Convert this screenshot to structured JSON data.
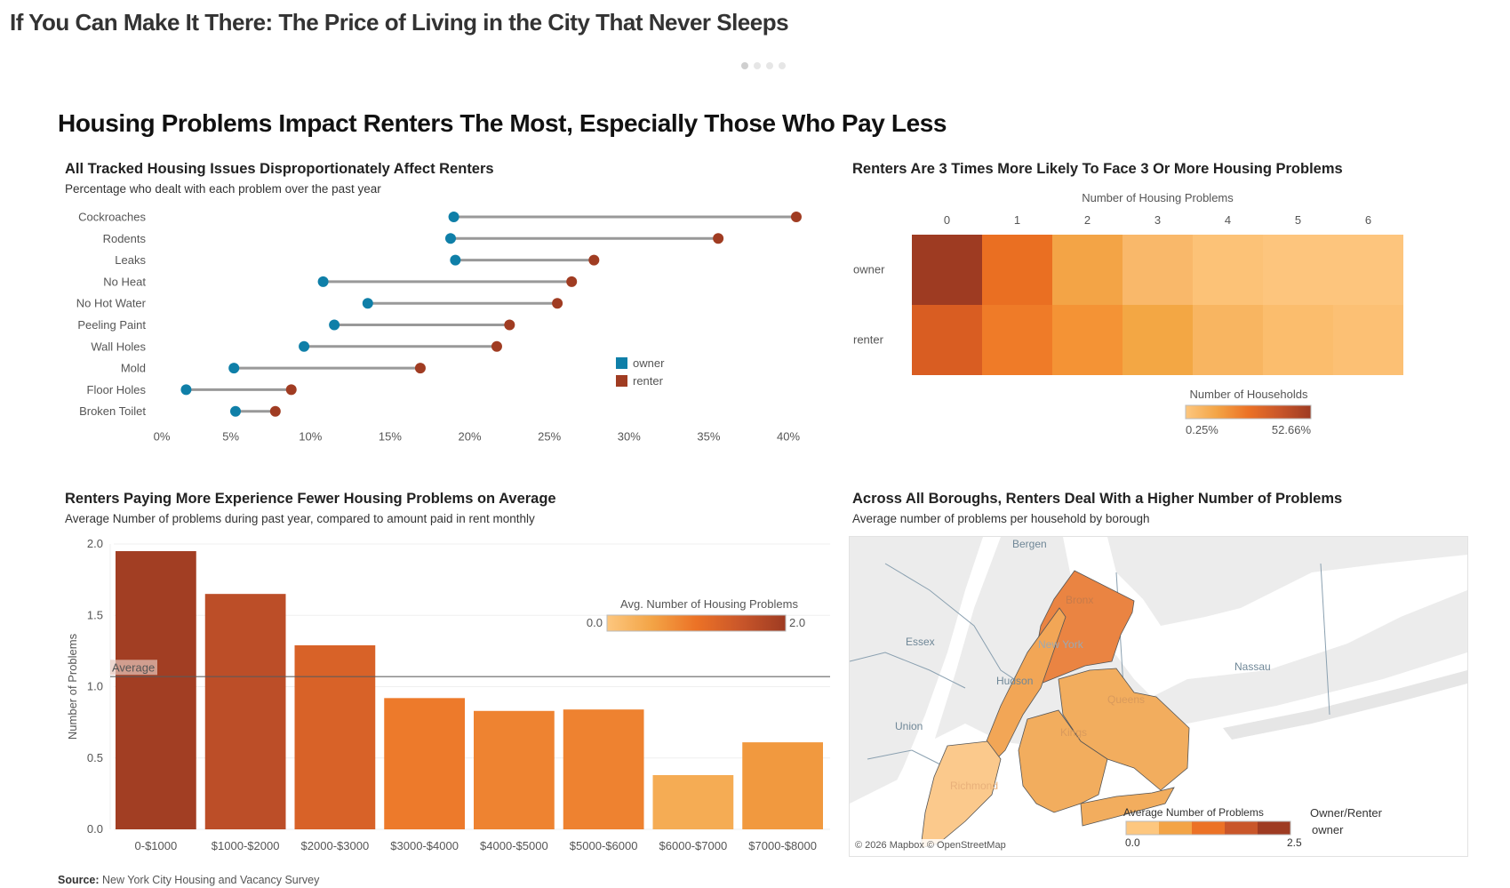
{
  "page": {
    "top_title": "If You Can Make It There: The Price of Living in the City That Never Sleeps",
    "pager": {
      "count": 4,
      "active_index": 0
    },
    "main_heading": "Housing Problems Impact Renters The Most, Especially Those Who Pay Less",
    "source_label": "Source:",
    "source_text": "New York City Housing and Vacancy Survey"
  },
  "colors": {
    "owner": "#0f7fa8",
    "renter": "#a03c22",
    "connector": "#999999",
    "seq_scale": [
      "#fdc77f",
      "#f3a446",
      "#ec7226",
      "#c9562a",
      "#9e3b22"
    ]
  },
  "chart_data": [
    {
      "id": "dumbbell",
      "type": "scatter",
      "title": "All Tracked Housing Issues Disproportionately Affect Renters",
      "subtitle": "Percentage who dealt with each problem over the past year",
      "categories": [
        "Cockroaches",
        "Rodents",
        "Leaks",
        "No Heat",
        "No Hot Water",
        "Peeling Paint",
        "Wall Holes",
        "Mold",
        "Floor Holes",
        "Broken Toilet"
      ],
      "series": [
        {
          "name": "owner",
          "values": [
            19.0,
            18.8,
            19.1,
            10.8,
            13.6,
            11.5,
            9.6,
            5.2,
            2.2,
            5.3
          ]
        },
        {
          "name": "renter",
          "values": [
            40.5,
            35.6,
            27.8,
            26.4,
            25.5,
            22.5,
            21.7,
            16.9,
            8.8,
            7.8
          ]
        }
      ],
      "xlim": [
        0,
        40
      ],
      "xticks": [
        "0%",
        "5%",
        "10%",
        "15%",
        "20%",
        "25%",
        "30%",
        "35%",
        "40%"
      ],
      "xtick_values": [
        0,
        5,
        10,
        15,
        20,
        25,
        30,
        35,
        40
      ],
      "legend": [
        "owner",
        "renter"
      ],
      "legend_position": "right"
    },
    {
      "id": "heatmap",
      "type": "heatmap",
      "title": "Renters Are 3 Times More Likely To Face 3 Or More Housing Problems",
      "xlabel": "Number of Housing Problems",
      "x": [
        "0",
        "1",
        "2",
        "3",
        "4",
        "5",
        "6"
      ],
      "y": [
        "owner",
        "renter"
      ],
      "colors": [
        [
          "#9e3b22",
          "#ea6f22",
          "#f3a446",
          "#f9b86a",
          "#fcc277",
          "#fdc57d",
          "#fdc57d"
        ],
        [
          "#d95d22",
          "#ef7b28",
          "#f49335",
          "#f3a744",
          "#f8b561",
          "#fbbd6d",
          "#fcc074"
        ]
      ],
      "legend_title": "Number of Households",
      "legend_min": "0.25%",
      "legend_max": "52.66%"
    },
    {
      "id": "rent-bars",
      "type": "bar",
      "title": "Renters Paying More Experience Fewer Housing Problems on Average",
      "subtitle": "Average Number of problems during past year, compared to amount paid in rent monthly",
      "ylabel": "Number of Problems",
      "categories": [
        "0-$1000",
        "$1000-$2000",
        "$2000-$3000",
        "$3000-$4000",
        "$4000-$5000",
        "$5000-$6000",
        "$6000-$7000",
        "$7000-$8000"
      ],
      "values": [
        1.95,
        1.65,
        1.29,
        0.92,
        0.83,
        0.84,
        0.38,
        0.61
      ],
      "ylim": [
        0,
        2.0
      ],
      "yticks": [
        "0.0",
        "0.5",
        "1.0",
        "1.5",
        "2.0"
      ],
      "ytick_values": [
        0,
        0.5,
        1.0,
        1.5,
        2.0
      ],
      "reference_line": {
        "label": "Average",
        "value": 1.07
      },
      "legend_title": "Avg. Number of Housing Problems",
      "legend_min": "0.0",
      "legend_max": "2.0",
      "grid": true
    },
    {
      "id": "borough-map",
      "type": "map",
      "title": "Across All Boroughs, Renters Deal With a Higher Number of Problems",
      "subtitle": "Average number of problems per household by borough",
      "regions": [
        {
          "name": "Bronx",
          "color": "#ea8442"
        },
        {
          "name": "New York",
          "color": "#f2a656"
        },
        {
          "name": "Queens",
          "color": "#f2ad5e"
        },
        {
          "name": "Kings",
          "color": "#f2ad5e"
        },
        {
          "name": "Richmond",
          "color": "#fbc98c"
        }
      ],
      "basemap_labels": [
        "Bergen",
        "Essex",
        "Hudson",
        "Union",
        "Nassau"
      ],
      "legend_title": "Average Number of Problems",
      "legend_min": "0.0",
      "legend_max": "2.5",
      "filter_title": "Owner/Renter",
      "filter_value": "owner",
      "attribution": "© 2026 Mapbox © OpenStreetMap"
    }
  ]
}
